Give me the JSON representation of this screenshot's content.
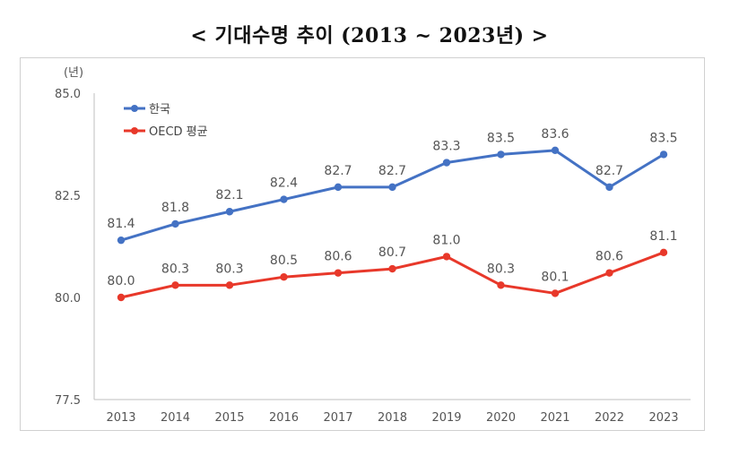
{
  "title": "< 기대수명 추이 (2013  ~  2023년) >",
  "chart_data": {
    "type": "line",
    "title": "< 기대수명 추이 (2013  ~  2023년) >",
    "y_unit_label": "(년)",
    "x": [
      "2013",
      "2014",
      "2015",
      "2016",
      "2017",
      "2018",
      "2019",
      "2020",
      "2021",
      "2022",
      "2023"
    ],
    "ylim": [
      77.5,
      85.0
    ],
    "yticks": [
      "85.0",
      "82.5",
      "80.0",
      "77.5"
    ],
    "ytick_values": [
      85.0,
      82.5,
      80.0,
      77.5
    ],
    "grid": false,
    "legend_position": "top-left",
    "series": [
      {
        "name": "한국",
        "color": "#4472C4",
        "values": [
          81.4,
          81.8,
          82.1,
          82.4,
          82.7,
          82.7,
          83.3,
          83.5,
          83.6,
          82.7,
          83.5
        ],
        "labels": [
          "81.4",
          "81.8",
          "82.1",
          "82.4",
          "82.7",
          "82.7",
          "83.3",
          "83.5",
          "83.6",
          "82.7",
          "83.5"
        ]
      },
      {
        "name": "OECD 평균",
        "color": "#E8382A",
        "values": [
          80.0,
          80.3,
          80.3,
          80.5,
          80.6,
          80.7,
          81.0,
          80.3,
          80.1,
          80.6,
          81.1
        ],
        "labels": [
          "80.0",
          "80.3",
          "80.3",
          "80.5",
          "80.6",
          "80.7",
          "81.0",
          "80.3",
          "80.1",
          "80.6",
          "81.1"
        ]
      }
    ]
  }
}
